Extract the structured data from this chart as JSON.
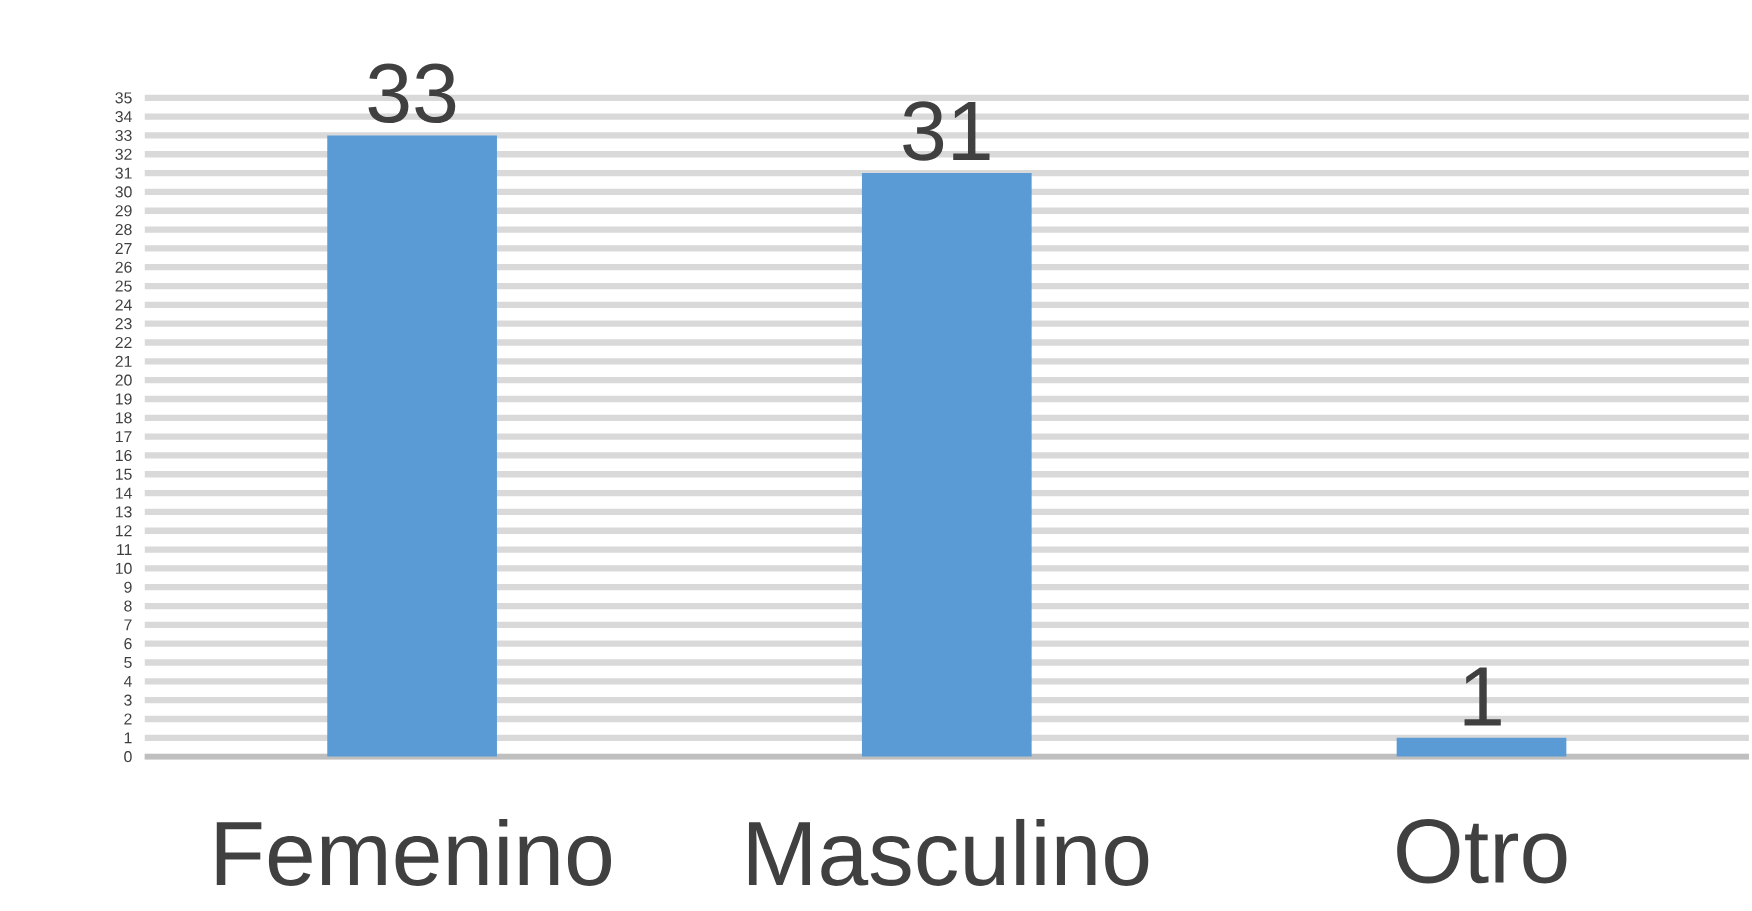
{
  "chart_data": {
    "type": "bar",
    "categories": [
      "Femenino",
      "Masculino",
      "Otro"
    ],
    "values": [
      33,
      31,
      1
    ],
    "color": "#5b9bd5",
    "data_labels": true,
    "grid": "y",
    "ylim": [
      0,
      35
    ],
    "yticks": [
      0,
      1,
      2,
      3,
      4,
      5,
      6,
      7,
      8,
      9,
      10,
      11,
      12,
      13,
      14,
      15,
      16,
      17,
      18,
      19,
      20,
      21,
      22,
      23,
      24,
      25,
      26,
      27,
      28,
      29,
      30,
      31,
      32,
      33,
      34,
      35
    ]
  }
}
